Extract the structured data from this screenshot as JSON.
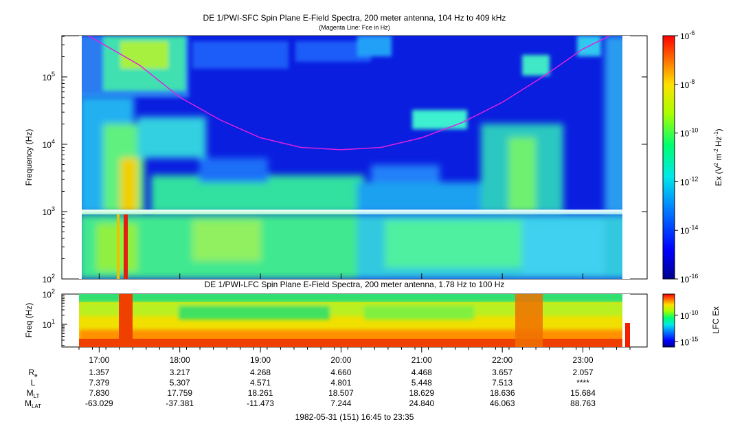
{
  "chart_data": [
    {
      "type": "heatmap",
      "title": "DE 1/PWI-SFC  Spin Plane E-Field Spectra, 200 meter antenna, 104 Hz to 409 kHz",
      "subtitle": "(Magenta Line: Fce in Hz)",
      "ylabel": "Frequency (Hz)",
      "yscale": "log",
      "ylim": [
        100,
        409000
      ],
      "y_ticks": [
        {
          "base": "10",
          "exp": "2"
        },
        {
          "base": "10",
          "exp": "3"
        },
        {
          "base": "10",
          "exp": "4"
        },
        {
          "base": "10",
          "exp": "5"
        }
      ],
      "colorbar": {
        "label": "Ex (V² m⁻² Hz⁻¹)",
        "label_parts": [
          "Ex (V",
          "2",
          " m",
          "-2",
          " Hz",
          "-1",
          ")"
        ],
        "scale": "log",
        "range": [
          1e-16,
          1e-06
        ],
        "ticks": [
          {
            "base": "10",
            "exp": "-6"
          },
          {
            "base": "10",
            "exp": "-8"
          },
          {
            "base": "10",
            "exp": "-10"
          },
          {
            "base": "10",
            "exp": "-12"
          },
          {
            "base": "10",
            "exp": "-14"
          },
          {
            "base": "10",
            "exp": "-16"
          }
        ]
      },
      "overlay_line": {
        "name": "Fce",
        "color": "#e020e0",
        "x": [
          "16:52",
          "17:30",
          "18:00",
          "18:30",
          "19:00",
          "19:30",
          "20:00",
          "20:30",
          "21:00",
          "21:30",
          "22:00",
          "22:30",
          "23:00",
          "23:20"
        ],
        "y": [
          409000,
          150000,
          50000,
          23000,
          12500,
          9000,
          8300,
          9000,
          12500,
          21000,
          42000,
          100000,
          260000,
          409000
        ]
      }
    },
    {
      "type": "heatmap",
      "title": "DE 1/PWI-LFC  Spin Plane E-Field Spectra, 200 meter antenna, 1.78 Hz to 100 Hz",
      "ylabel": "Freq (Hz)",
      "yscale": "log",
      "ylim": [
        1.78,
        100
      ],
      "y_ticks": [
        {
          "base": "10",
          "exp": "2"
        },
        {
          "base": "10",
          "exp": "1"
        }
      ],
      "colorbar": {
        "label": "LFC Ex",
        "scale": "log",
        "range": [
          1e-16,
          1e-06
        ],
        "ticks": [
          {
            "base": "10",
            "exp": "-10"
          },
          {
            "base": "10",
            "exp": "-15"
          }
        ]
      }
    }
  ],
  "time_axis": {
    "ticks": [
      "17:00",
      "18:00",
      "19:00",
      "20:00",
      "21:00",
      "22:00",
      "23:00"
    ],
    "caption": "1982-05-31 (151) 16:45 to 23:35"
  },
  "ephemeris": [
    {
      "label": "R",
      "sub": "e",
      "values": [
        "1.357",
        "3.217",
        "4.268",
        "4.660",
        "4.468",
        "3.657",
        "2.057"
      ]
    },
    {
      "label": "L",
      "sub": "",
      "values": [
        "7.379",
        "5.307",
        "4.571",
        "4.801",
        "5.448",
        "7.513",
        "****"
      ]
    },
    {
      "label": "M",
      "sub": "LT",
      "values": [
        "7.830",
        "17.759",
        "18.261",
        "18.507",
        "18.629",
        "18.636",
        "15.684"
      ]
    },
    {
      "label": "M",
      "sub": "LAT",
      "values": [
        "-63.029",
        "-37.381",
        "-11.473",
        "7.244",
        "24.840",
        "46.063",
        "88.763"
      ]
    }
  ]
}
